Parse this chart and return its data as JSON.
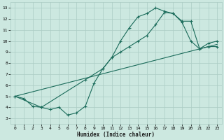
{
  "xlabel": "Humidex (Indice chaleur)",
  "bg_color": "#cce8e0",
  "grid_color": "#aaccc4",
  "line_color": "#1a6b5a",
  "xlim": [
    -0.5,
    23.5
  ],
  "ylim": [
    2.5,
    13.5
  ],
  "xticks": [
    0,
    1,
    2,
    3,
    4,
    5,
    6,
    7,
    8,
    9,
    10,
    11,
    12,
    13,
    14,
    15,
    16,
    17,
    18,
    19,
    20,
    21,
    22,
    23
  ],
  "yticks": [
    3,
    4,
    5,
    6,
    7,
    8,
    9,
    10,
    11,
    12,
    13
  ],
  "line1_x": [
    0,
    1,
    2,
    3,
    4,
    5,
    6,
    7,
    8,
    9,
    10,
    11,
    12,
    13,
    14,
    15,
    16,
    17,
    18,
    19,
    20,
    21,
    22,
    23
  ],
  "line1_y": [
    5.0,
    4.8,
    4.1,
    4.0,
    3.8,
    4.0,
    3.3,
    3.5,
    4.1,
    6.2,
    7.5,
    8.5,
    9.0,
    9.5,
    10.0,
    10.5,
    11.5,
    12.6,
    12.5,
    11.7,
    10.0,
    9.3,
    9.8,
    10.0
  ],
  "line2_x": [
    0,
    3,
    8,
    10,
    11,
    12,
    13,
    14,
    15,
    16,
    17,
    18,
    19,
    20,
    21,
    22,
    23
  ],
  "line2_y": [
    5.0,
    4.0,
    6.5,
    7.5,
    8.5,
    10.0,
    11.2,
    12.2,
    12.5,
    13.0,
    12.7,
    12.5,
    11.8,
    11.8,
    9.3,
    9.5,
    9.5
  ],
  "line3_x": [
    0,
    23
  ],
  "line3_y": [
    5.0,
    9.7
  ]
}
